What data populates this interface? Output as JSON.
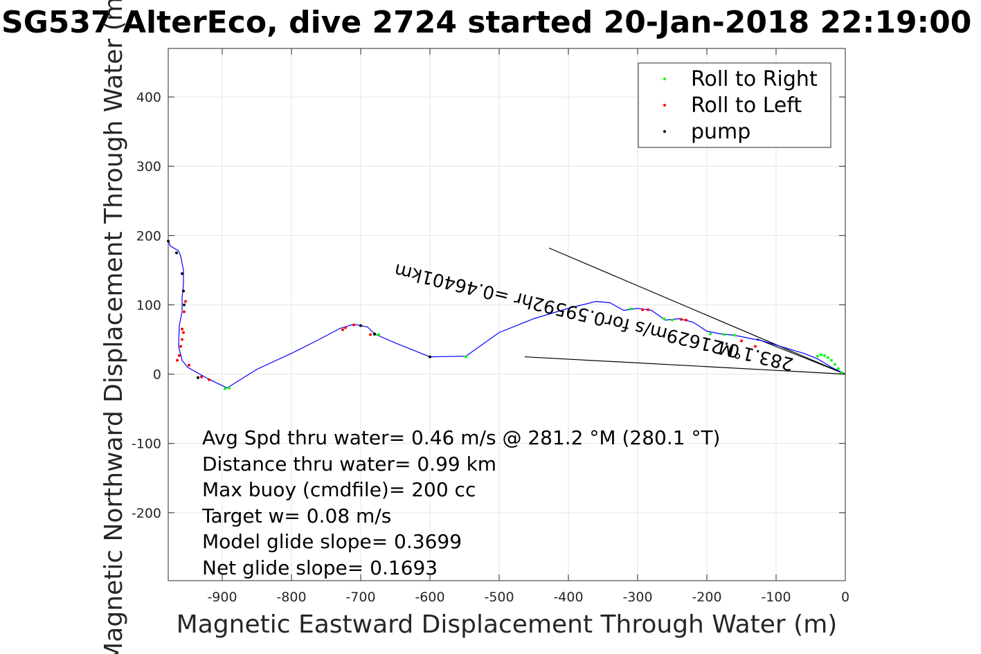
{
  "chart_data": {
    "type": "line",
    "title": "SG537 AlterEco, dive 2724 started 20-Jan-2018 22:19:00",
    "xlabel": "Magnetic Eastward Displacement Through Water (m)",
    "ylabel": "Magnetic Northward Displacement Through Water (m)",
    "xlim": [
      -978,
      0
    ],
    "ylim": [
      -298,
      470
    ],
    "xticks": [
      -900,
      -800,
      -700,
      -600,
      -500,
      -400,
      -300,
      -200,
      -100,
      0
    ],
    "yticks": [
      -200,
      -100,
      0,
      100,
      200,
      300,
      400
    ],
    "grid": true,
    "legend_position": "top-right",
    "legend": [
      {
        "name": "Roll to Right",
        "color": "#00ff00"
      },
      {
        "name": "Roll to Left",
        "color": "#ff0000"
      },
      {
        "name": "pump",
        "color": "#000000"
      }
    ],
    "track_color": "#0000ff",
    "track": {
      "x": [
        0,
        -20,
        -40,
        -60,
        -80,
        -100,
        -120,
        -140,
        -160,
        -180,
        -200,
        -220,
        -240,
        -260,
        -280,
        -300,
        -320,
        -340,
        -360,
        -400,
        -450,
        -500,
        -548,
        -600,
        -650,
        -680,
        -690,
        -710,
        -730,
        -760,
        -800,
        -850,
        -893,
        -920,
        -950,
        -958,
        -963,
        -962,
        -958,
        -958,
        -956,
        -956,
        -960,
        -963,
        -975,
        -978
      ],
      "y": [
        0,
        10,
        22,
        30,
        36,
        42,
        48,
        52,
        56,
        58,
        62,
        75,
        80,
        78,
        92,
        95,
        92,
        103,
        105,
        95,
        80,
        60,
        26,
        25,
        45,
        58,
        68,
        72,
        66,
        50,
        30,
        7,
        -20,
        -7,
        10,
        20,
        40,
        70,
        90,
        110,
        130,
        150,
        170,
        178,
        185,
        192
      ]
    },
    "right_roll_points": {
      "x": [
        -5,
        -10,
        -15,
        -20,
        -25,
        -30,
        -35,
        -40,
        -160,
        -175,
        -195,
        -250,
        -262,
        -310,
        -890,
        -896,
        -600,
        -548,
        -674,
        -680
      ],
      "y": [
        2,
        8,
        14,
        20,
        24,
        27,
        28,
        26,
        56,
        57,
        58,
        78,
        80,
        94,
        -20,
        -21,
        25,
        25,
        57,
        57
      ]
    },
    "left_roll_points": {
      "x": [
        -965,
        -962,
        -960,
        -958,
        -956,
        -958,
        -955,
        -953,
        -948,
        -930,
        -919,
        -726,
        -722,
        -710,
        -686,
        -230,
        -237,
        -285,
        -293,
        -150,
        -130
      ],
      "y": [
        20,
        27,
        40,
        50,
        60,
        65,
        90,
        105,
        13,
        -4,
        -8,
        64,
        67,
        71,
        57,
        78,
        79,
        93,
        93,
        48,
        40
      ]
    },
    "pump_points": {
      "x": [
        -978,
        -966,
        -958,
        -956,
        -955,
        -935,
        -700,
        -680,
        -600
      ],
      "y": [
        192,
        175,
        145,
        120,
        100,
        -5,
        70,
        58,
        25
      ]
    },
    "current_lines": [
      {
        "x": [
          0,
          -428
        ],
        "y": [
          0,
          182
        ]
      },
      {
        "x": [
          0,
          -463
        ],
        "y": [
          0,
          25
        ]
      },
      {
        "x": [
          0,
          -128
        ],
        "y": [
          0,
          51
        ]
      }
    ],
    "rotated_annotations": [
      {
        "text": "0.21629m/s for0.59592hr =0.46401km",
        "x": -400,
        "y": 100,
        "angle_deg": 13.4
      },
      {
        "text": "283.1°M",
        "x": -127,
        "y": 35,
        "angle_deg": 13.4
      }
    ],
    "annotations": [
      "Avg Spd thru water=  0.46 m/s @ 281.2 °M (280.1 °T)",
      "Distance thru water=  0.99 km",
      "Max buoy (cmdfile)= 200 cc",
      "Target w= 0.08 m/s",
      "Model glide slope= 0.3699",
      "Net glide slope= 0.1693"
    ]
  }
}
